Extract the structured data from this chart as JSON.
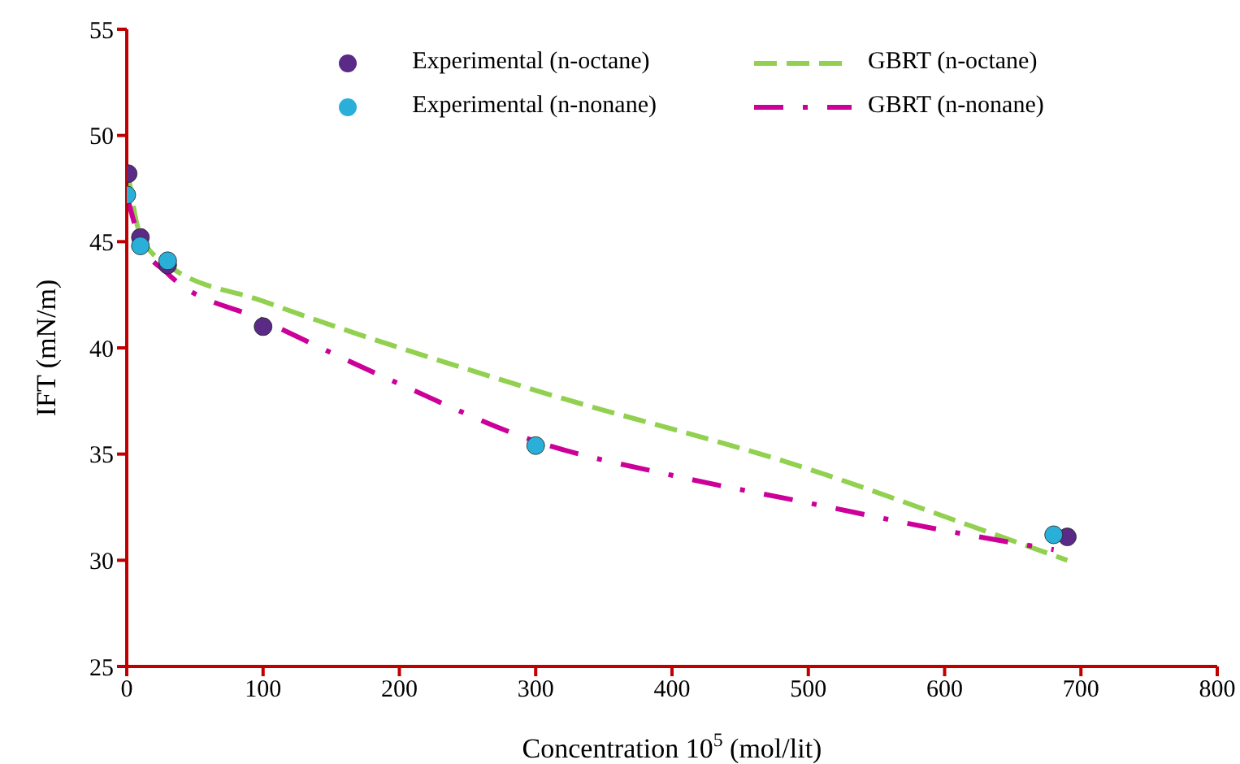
{
  "chart_data": {
    "type": "scatter",
    "xlabel": "Concentration  10$^{5}$ (mol/lit)",
    "ylabel": "IFT (mN/m)",
    "xlim": [
      0,
      800
    ],
    "xticks": [
      0,
      100,
      200,
      300,
      400,
      500,
      600,
      700,
      800
    ],
    "ylim": [
      25,
      55
    ],
    "yticks": [
      25,
      30,
      35,
      40,
      45,
      50,
      55
    ],
    "grid": false,
    "legend": "top",
    "series": [
      {
        "name": "Experimental (n-octane)",
        "marker": "circle",
        "color": "#5b2a86",
        "x": [
          1,
          10,
          30,
          100,
          690
        ],
        "values": [
          48.2,
          45.2,
          43.9,
          41.0,
          31.1
        ]
      },
      {
        "name": "GBRT (n-octane)",
        "type": "line",
        "line_style": "dashed",
        "color": "#92d050",
        "x": [
          1,
          10,
          30,
          100,
          300,
          500,
          620,
          690
        ],
        "values": [
          48.2,
          45.3,
          43.9,
          42.2,
          38.0,
          34.3,
          31.6,
          30.0
        ]
      },
      {
        "name": "Experimental (n-nonane)",
        "marker": "circle",
        "color": "#2ab0d8",
        "x": [
          0,
          10,
          30,
          300,
          680
        ],
        "values": [
          47.2,
          44.8,
          44.1,
          35.4,
          31.2
        ]
      },
      {
        "name": "GBRT (n-nonane)",
        "type": "line",
        "line_style": "dashdot",
        "color": "#cc0099",
        "x": [
          0,
          5,
          10,
          30,
          100,
          200,
          300,
          400,
          500,
          600,
          680
        ],
        "values": [
          47.2,
          46.0,
          45.0,
          43.5,
          41.3,
          38.3,
          35.6,
          34.0,
          32.7,
          31.4,
          30.5
        ]
      }
    ]
  }
}
